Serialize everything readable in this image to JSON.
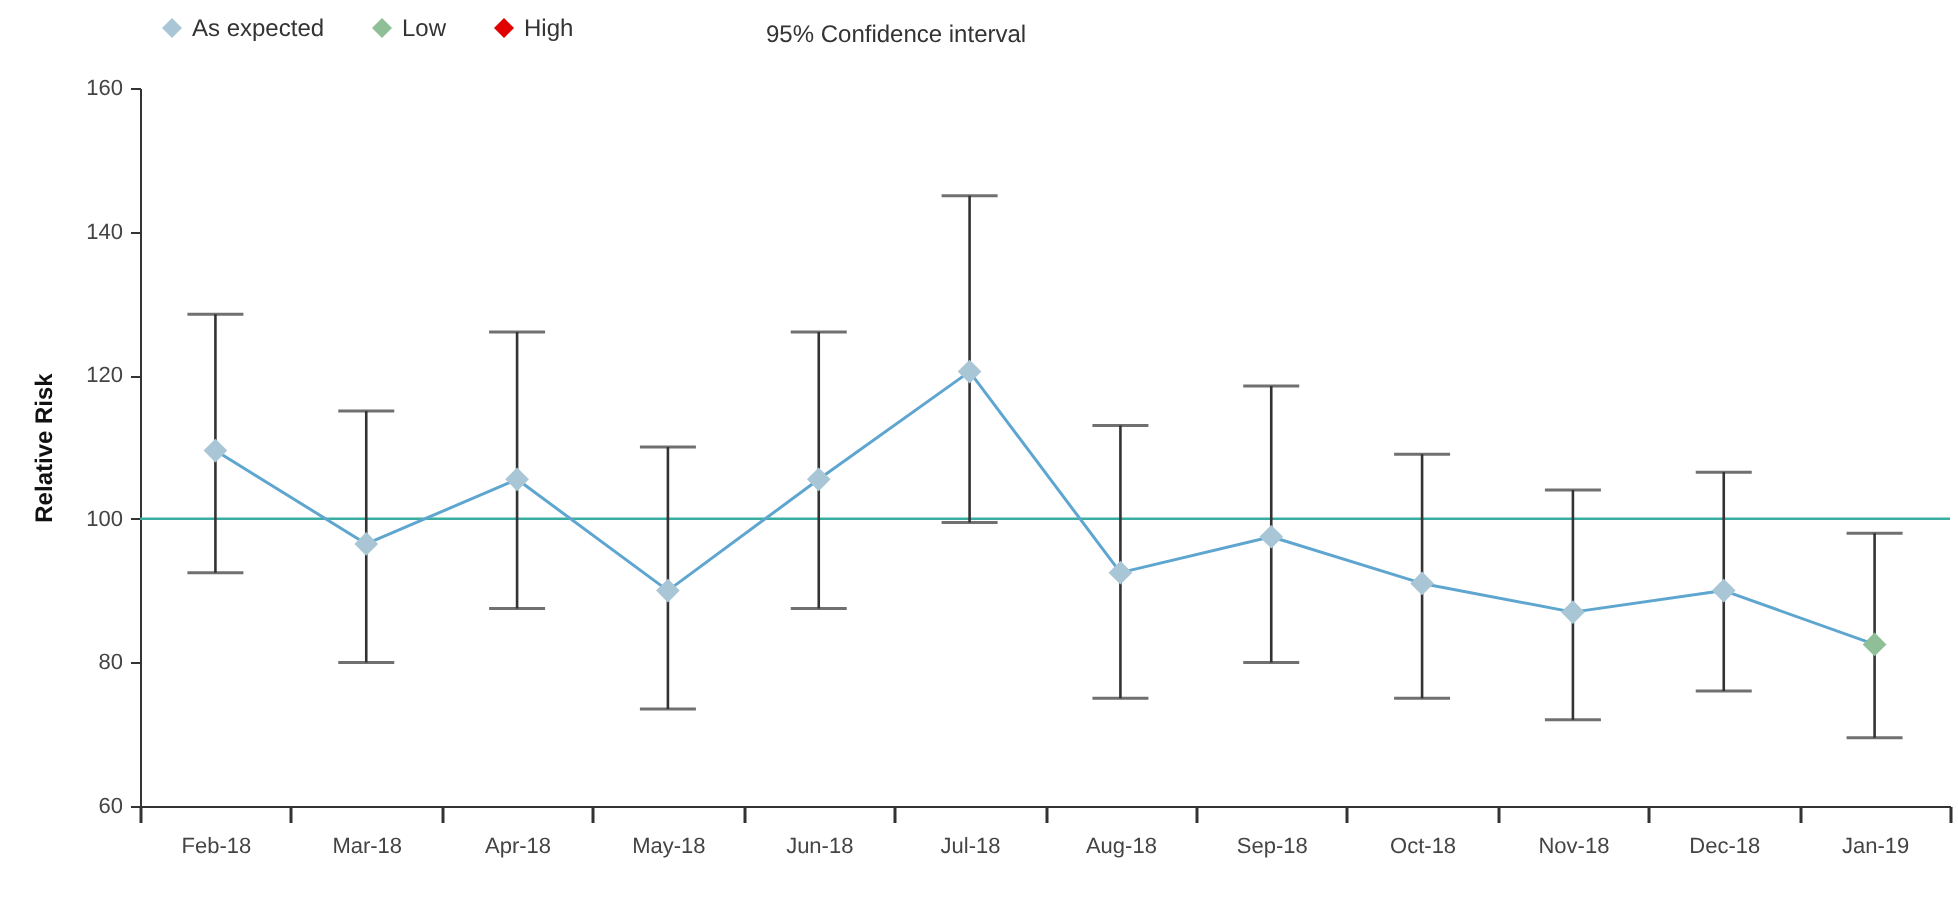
{
  "chart_data": {
    "type": "line",
    "ylabel": "Relative Risk",
    "categories": [
      "Feb-18",
      "Mar-18",
      "Apr-18",
      "May-18",
      "Jun-18",
      "Jul-18",
      "Aug-18",
      "Sep-18",
      "Oct-18",
      "Nov-18",
      "Dec-18",
      "Jan-19"
    ],
    "series": [
      {
        "marker": "none",
        "color": "#5ea6d0",
        "values": [
          109.5,
          96.5,
          105.5,
          90,
          105.5,
          120.5,
          92.5,
          97.5,
          91,
          87,
          90,
          82.5
        ],
        "errors": [
          [
            92.5,
            128.5
          ],
          [
            80,
            115
          ],
          [
            87.5,
            126
          ],
          [
            73.5,
            110
          ],
          [
            87.5,
            126
          ],
          [
            99.5,
            145
          ],
          [
            75,
            113
          ],
          [
            80,
            118.5
          ],
          [
            75,
            109
          ],
          [
            72,
            104
          ],
          [
            76,
            106.5
          ],
          [
            69.5,
            98
          ]
        ]
      },
      {
        "type": "scatter",
        "marker": "diamond",
        "name": "As expected",
        "color": "#a9c6d6",
        "values": [
          109.5,
          96.5,
          105.5,
          90,
          105.5,
          120.5,
          92.5,
          97.5,
          91,
          87,
          90,
          null
        ]
      },
      {
        "type": "scatter",
        "marker": "diamond",
        "name": "Low",
        "color": "#8fbf96",
        "values": [
          null,
          null,
          null,
          null,
          null,
          null,
          null,
          null,
          null,
          null,
          null,
          82.5
        ]
      },
      {
        "type": "scatter",
        "marker": "diamond",
        "name": "High",
        "color": "#e00000",
        "values": [
          null,
          null,
          null,
          null,
          null,
          null,
          null,
          null,
          null,
          null,
          null,
          null
        ]
      }
    ],
    "ylim": [
      60,
      160
    ],
    "yticks": [
      60,
      80,
      100,
      120,
      140,
      160
    ],
    "ref_lines": [
      {
        "axis": "y",
        "value": 100,
        "color": "#3aaea0"
      }
    ],
    "annotations": [
      "95% Confidence interval"
    ],
    "legend": "top left",
    "grid": false
  }
}
